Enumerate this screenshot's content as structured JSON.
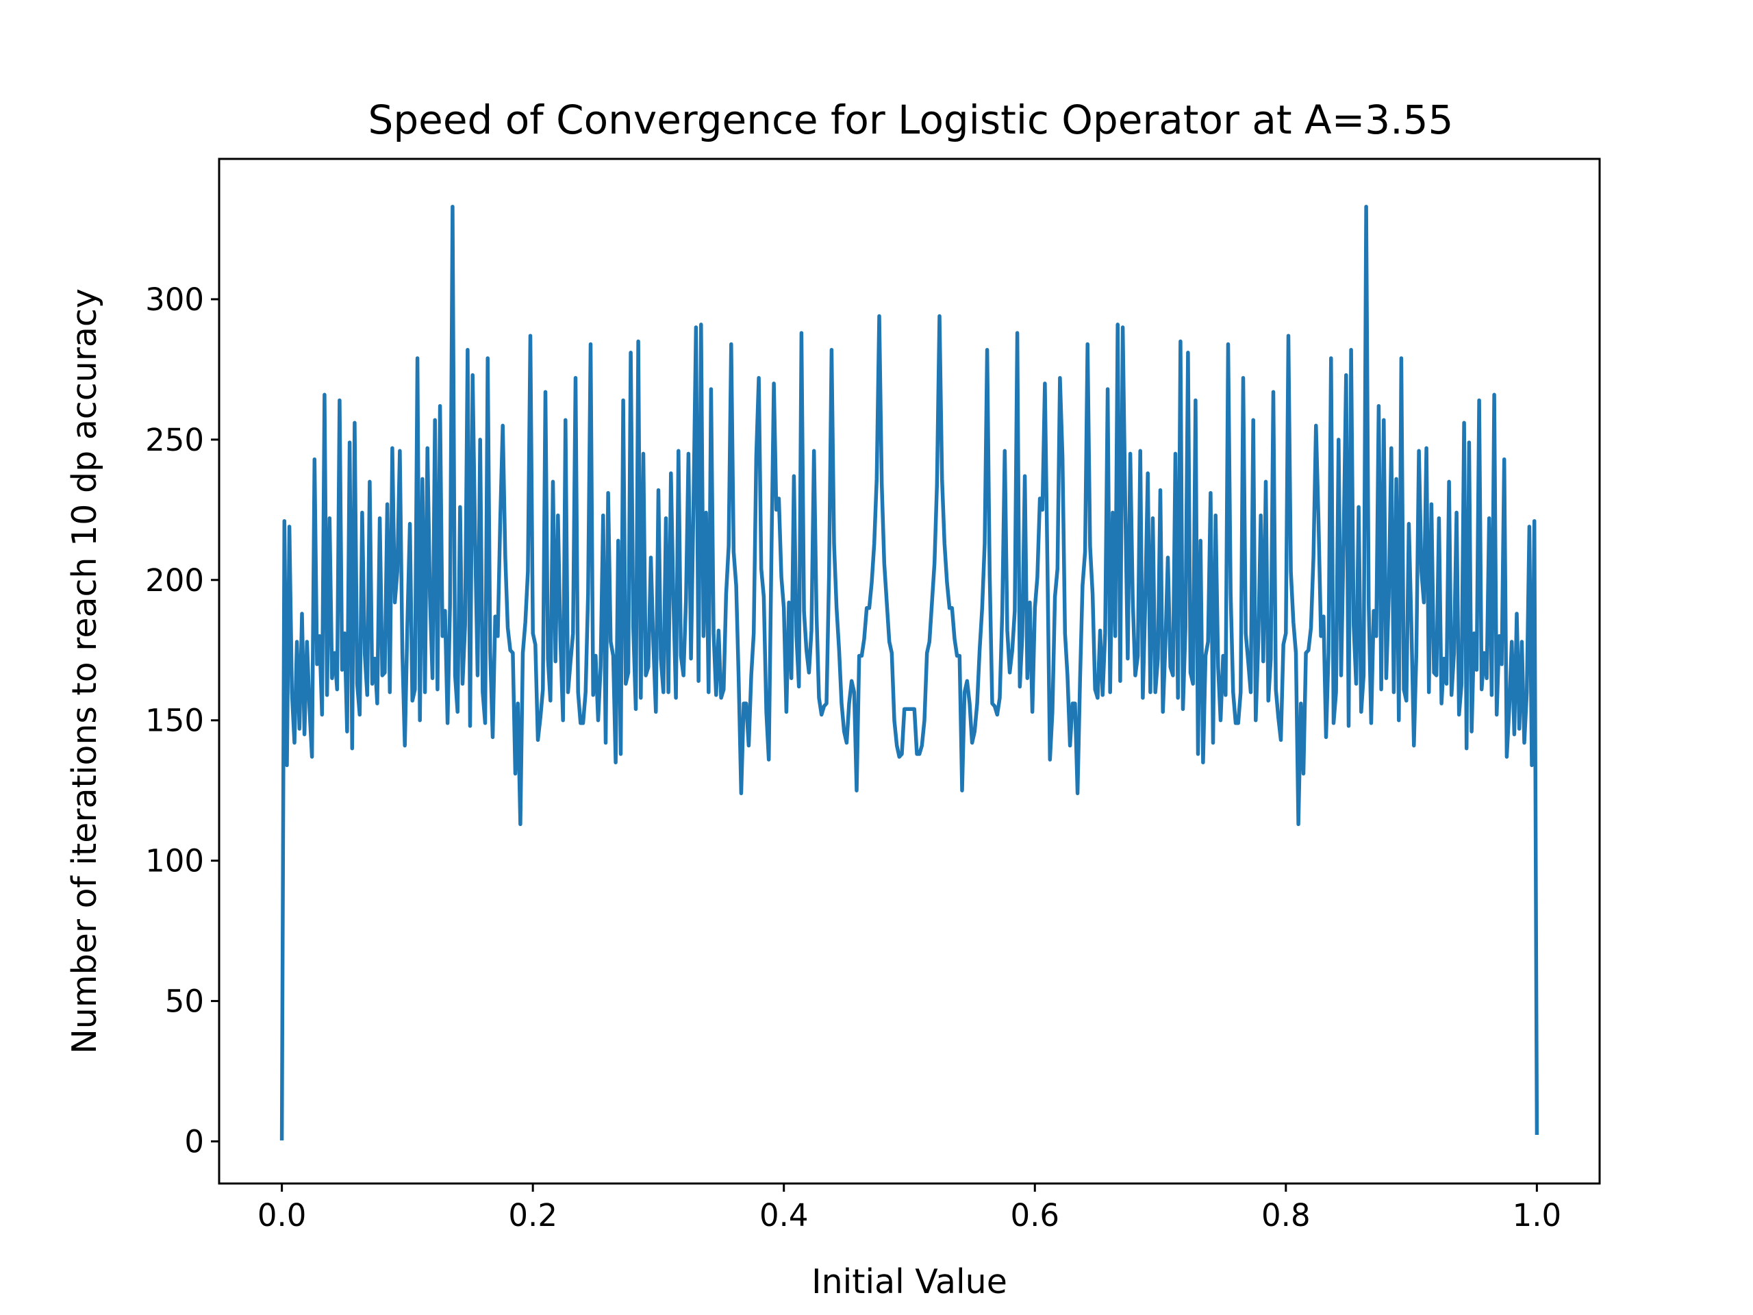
{
  "chart_data": {
    "type": "line",
    "title": "Speed of Convergence for Logistic Operator at A=3.55",
    "xlabel": "Initial Value",
    "ylabel": "Number of iterations to reach 10 dp accuracy",
    "xlim": [
      -0.05,
      1.05
    ],
    "ylim": [
      -15,
      350
    ],
    "xticks": [
      0.0,
      0.2,
      0.4,
      0.6,
      0.8,
      1.0
    ],
    "xtick_labels": [
      "0.0",
      "0.2",
      "0.4",
      "0.6",
      "0.8",
      "1.0"
    ],
    "yticks": [
      0,
      50,
      100,
      150,
      200,
      250,
      300
    ],
    "ytick_labels": [
      "0",
      "50",
      "100",
      "150",
      "200",
      "250",
      "300"
    ],
    "grid": false,
    "legend": "none",
    "series_color": "#1f77b4",
    "series": [
      {
        "x": [
          0.0,
          0.002,
          0.004,
          0.006,
          0.008,
          0.01,
          0.012,
          0.014,
          0.016,
          0.018,
          0.02,
          0.022,
          0.024,
          0.026,
          0.028,
          0.03,
          0.032,
          0.034,
          0.036,
          0.038,
          0.04,
          0.042,
          0.044,
          0.046,
          0.048,
          0.05,
          0.052,
          0.054,
          0.056,
          0.058,
          0.06,
          0.062,
          0.064,
          0.066,
          0.068,
          0.07,
          0.072,
          0.074,
          0.076,
          0.078,
          0.08,
          0.082,
          0.084,
          0.086,
          0.088,
          0.09,
          0.092,
          0.094,
          0.096,
          0.098,
          0.1,
          0.102,
          0.104,
          0.106,
          0.108,
          0.11,
          0.112,
          0.114,
          0.116,
          0.118,
          0.12,
          0.122,
          0.124,
          0.126,
          0.128,
          0.13,
          0.132,
          0.134,
          0.136,
          0.138,
          0.14,
          0.142,
          0.144,
          0.146,
          0.148,
          0.15,
          0.152,
          0.154,
          0.156,
          0.158,
          0.16,
          0.162,
          0.164,
          0.166,
          0.168,
          0.17,
          0.172,
          0.174,
          0.176,
          0.178,
          0.18,
          0.182,
          0.184,
          0.186,
          0.188,
          0.19,
          0.192,
          0.194,
          0.196,
          0.198,
          0.2,
          0.202,
          0.204,
          0.206,
          0.208,
          0.21,
          0.212,
          0.214,
          0.216,
          0.218,
          0.22,
          0.222,
          0.224,
          0.226,
          0.228,
          0.23,
          0.232,
          0.234,
          0.236,
          0.238,
          0.24,
          0.242,
          0.244,
          0.246,
          0.248,
          0.25,
          0.252,
          0.254,
          0.256,
          0.258,
          0.26,
          0.262,
          0.264,
          0.266,
          0.268,
          0.27,
          0.272,
          0.274,
          0.276,
          0.278,
          0.28,
          0.282,
          0.284,
          0.286,
          0.288,
          0.29,
          0.292,
          0.294,
          0.296,
          0.298,
          0.3,
          0.302,
          0.304,
          0.306,
          0.308,
          0.31,
          0.312,
          0.314,
          0.316,
          0.318,
          0.32,
          0.322,
          0.324,
          0.326,
          0.328,
          0.33,
          0.332,
          0.334,
          0.336,
          0.338,
          0.34,
          0.342,
          0.344,
          0.346,
          0.348,
          0.35,
          0.352,
          0.354,
          0.356,
          0.358,
          0.36,
          0.362,
          0.364,
          0.366,
          0.368,
          0.37,
          0.372,
          0.374,
          0.376,
          0.378,
          0.38,
          0.382,
          0.384,
          0.386,
          0.388,
          0.39,
          0.392,
          0.394,
          0.396,
          0.398,
          0.4,
          0.402,
          0.404,
          0.406,
          0.408,
          0.41,
          0.412,
          0.414,
          0.416,
          0.418,
          0.42,
          0.422,
          0.424,
          0.426,
          0.428,
          0.43,
          0.432,
          0.434,
          0.436,
          0.438,
          0.44,
          0.442,
          0.444,
          0.446,
          0.448,
          0.45,
          0.452,
          0.454,
          0.456,
          0.458,
          0.46,
          0.462,
          0.464,
          0.466,
          0.468,
          0.47,
          0.472,
          0.474,
          0.476,
          0.478,
          0.48,
          0.482,
          0.484,
          0.486,
          0.488,
          0.49,
          0.492,
          0.494,
          0.496,
          0.498,
          0.5,
          0.502,
          0.504,
          0.506,
          0.508,
          0.51,
          0.512,
          0.514,
          0.516,
          0.518,
          0.52,
          0.522,
          0.524,
          0.526,
          0.528,
          0.53,
          0.532,
          0.534,
          0.536,
          0.538,
          0.54,
          0.542,
          0.544,
          0.546,
          0.548,
          0.55,
          0.552,
          0.554,
          0.556,
          0.558,
          0.56,
          0.562,
          0.564,
          0.566,
          0.568,
          0.57,
          0.572,
          0.574,
          0.576,
          0.578,
          0.58,
          0.582,
          0.584,
          0.586,
          0.588,
          0.59,
          0.592,
          0.594,
          0.596,
          0.598,
          0.6,
          0.602,
          0.604,
          0.606,
          0.608,
          0.61,
          0.612,
          0.614,
          0.616,
          0.618,
          0.62,
          0.622,
          0.624,
          0.626,
          0.628,
          0.63,
          0.632,
          0.634,
          0.636,
          0.638,
          0.64,
          0.642,
          0.644,
          0.646,
          0.648,
          0.65,
          0.652,
          0.654,
          0.656,
          0.658,
          0.66,
          0.662,
          0.664,
          0.666,
          0.668,
          0.67,
          0.672,
          0.674,
          0.676,
          0.678,
          0.68,
          0.682,
          0.684,
          0.686,
          0.688,
          0.69,
          0.692,
          0.694,
          0.696,
          0.698,
          0.7,
          0.702,
          0.704,
          0.706,
          0.708,
          0.71,
          0.712,
          0.714,
          0.716,
          0.718,
          0.72,
          0.722,
          0.724,
          0.726,
          0.728,
          0.73,
          0.732,
          0.734,
          0.736,
          0.738,
          0.74,
          0.742,
          0.744,
          0.746,
          0.748,
          0.75,
          0.752,
          0.754,
          0.756,
          0.758,
          0.76,
          0.762,
          0.764,
          0.766,
          0.768,
          0.77,
          0.772,
          0.774,
          0.776,
          0.778,
          0.78,
          0.782,
          0.784,
          0.786,
          0.788,
          0.79,
          0.792,
          0.794,
          0.796,
          0.798,
          0.8,
          0.802,
          0.804,
          0.806,
          0.808,
          0.81,
          0.812,
          0.814,
          0.816,
          0.818,
          0.82,
          0.822,
          0.824,
          0.826,
          0.828,
          0.83,
          0.832,
          0.834,
          0.836,
          0.838,
          0.84,
          0.842,
          0.844,
          0.846,
          0.848,
          0.85,
          0.852,
          0.854,
          0.856,
          0.858,
          0.86,
          0.862,
          0.864,
          0.866,
          0.868,
          0.87,
          0.872,
          0.874,
          0.876,
          0.878,
          0.88,
          0.882,
          0.884,
          0.886,
          0.888,
          0.89,
          0.892,
          0.894,
          0.896,
          0.898,
          0.9,
          0.902,
          0.904,
          0.906,
          0.908,
          0.91,
          0.912,
          0.914,
          0.916,
          0.918,
          0.92,
          0.922,
          0.924,
          0.926,
          0.928,
          0.93,
          0.932,
          0.934,
          0.936,
          0.938,
          0.94,
          0.942,
          0.944,
          0.946,
          0.948,
          0.95,
          0.952,
          0.954,
          0.956,
          0.958,
          0.96,
          0.962,
          0.964,
          0.966,
          0.968,
          0.97,
          0.972,
          0.974,
          0.976,
          0.978,
          0.98,
          0.982,
          0.984,
          0.986,
          0.988,
          0.99,
          0.992,
          0.994,
          0.996,
          0.998,
          1.0
        ],
        "y": [
          1,
          221,
          134,
          219,
          160,
          142,
          178,
          147,
          188,
          145,
          178,
          154,
          137,
          243,
          170,
          180,
          152,
          266,
          159,
          222,
          165,
          174,
          161,
          264,
          168,
          181,
          146,
          249,
          140,
          256,
          163,
          152,
          224,
          174,
          159,
          235,
          163,
          172,
          156,
          222,
          166,
          167,
          227,
          160,
          247,
          192,
          203,
          246,
          174,
          141,
          184,
          220,
          157,
          161,
          279,
          150,
          236,
          160,
          247,
          194,
          165,
          257,
          161,
          262,
          180,
          189,
          149,
          191,
          333,
          166,
          153,
          226,
          163,
          184,
          282,
          148,
          273,
          213,
          166,
          250,
          160,
          149,
          279,
          174,
          144,
          187,
          180,
          221,
          255,
          208,
          183,
          175,
          174,
          131,
          156,
          113,
          174,
          185,
          203,
          287,
          181,
          177,
          143,
          151,
          161,
          267,
          172,
          157,
          235,
          171,
          223,
          178,
          150,
          257,
          160,
          171,
          181,
          272,
          160,
          149,
          149,
          160,
          195,
          284,
          159,
          173,
          150,
          169,
          223,
          142,
          231,
          178,
          173,
          135,
          214,
          138,
          264,
          163,
          167,
          281,
          183,
          154,
          285,
          158,
          245,
          166,
          169,
          208,
          177,
          153,
          232,
          172,
          160,
          222,
          160,
          238,
          193,
          158,
          246,
          173,
          166,
          193,
          245,
          172,
          228,
          290,
          164,
          291,
          180,
          224,
          160,
          268,
          181,
          159,
          182,
          158,
          161,
          195,
          212,
          284,
          210,
          198,
          165,
          124,
          156,
          156,
          141,
          166,
          181,
          244,
          272,
          204,
          194,
          153,
          136,
          206,
          270,
          225,
          229,
          201,
          190,
          153,
          192,
          165,
          237,
          180,
          162,
          288,
          189,
          175,
          167,
          182,
          246,
          188,
          158,
          152,
          155,
          156,
          202,
          282,
          213,
          190,
          175,
          156,
          146,
          142,
          156,
          164,
          160,
          125,
          173,
          173,
          179,
          190,
          190,
          199,
          213,
          236,
          294,
          234,
          206,
          192,
          178,
          174,
          150,
          141,
          137,
          138,
          154,
          154,
          154,
          154,
          154,
          138,
          138,
          141,
          150,
          174,
          178,
          192,
          206,
          234,
          294,
          236,
          213,
          199,
          190,
          190,
          179,
          173,
          173,
          125,
          160,
          164,
          156,
          142,
          146,
          156,
          175,
          190,
          213,
          282,
          202,
          156,
          155,
          152,
          158,
          188,
          246,
          182,
          167,
          175,
          189,
          288,
          162,
          180,
          237,
          165,
          192,
          153,
          190,
          201,
          229,
          225,
          270,
          206,
          136,
          153,
          194,
          204,
          272,
          244,
          181,
          166,
          141,
          156,
          156,
          124,
          165,
          198,
          210,
          284,
          212,
          195,
          161,
          158,
          182,
          159,
          181,
          268,
          160,
          224,
          180,
          291,
          164,
          290,
          228,
          172,
          245,
          193,
          166,
          173,
          246,
          158,
          193,
          238,
          160,
          222,
          160,
          172,
          232,
          153,
          177,
          208,
          169,
          166,
          245,
          158,
          285,
          154,
          183,
          281,
          167,
          163,
          264,
          138,
          214,
          135,
          173,
          178,
          231,
          142,
          223,
          169,
          150,
          173,
          159,
          284,
          195,
          160,
          149,
          149,
          160,
          272,
          181,
          171,
          160,
          257,
          150,
          178,
          223,
          171,
          235,
          157,
          172,
          267,
          161,
          151,
          143,
          177,
          181,
          287,
          203,
          185,
          174,
          113,
          156,
          131,
          174,
          175,
          183,
          208,
          255,
          221,
          180,
          187,
          144,
          174,
          279,
          149,
          160,
          250,
          166,
          213,
          273,
          148,
          282,
          184,
          163,
          226,
          153,
          166,
          333,
          191,
          149,
          189,
          180,
          262,
          161,
          257,
          165,
          194,
          247,
          160,
          236,
          150,
          279,
          161,
          157,
          220,
          184,
          141,
          174,
          246,
          203,
          192,
          247,
          160,
          227,
          167,
          166,
          222,
          156,
          172,
          163,
          235,
          159,
          174,
          224,
          152,
          163,
          256,
          140,
          249,
          146,
          181,
          168,
          264,
          161,
          174,
          165,
          222,
          159,
          266,
          152,
          180,
          170,
          243,
          137,
          154,
          178,
          145,
          188,
          147,
          178,
          142,
          160,
          219,
          134,
          221,
          3
        ]
      }
    ]
  }
}
